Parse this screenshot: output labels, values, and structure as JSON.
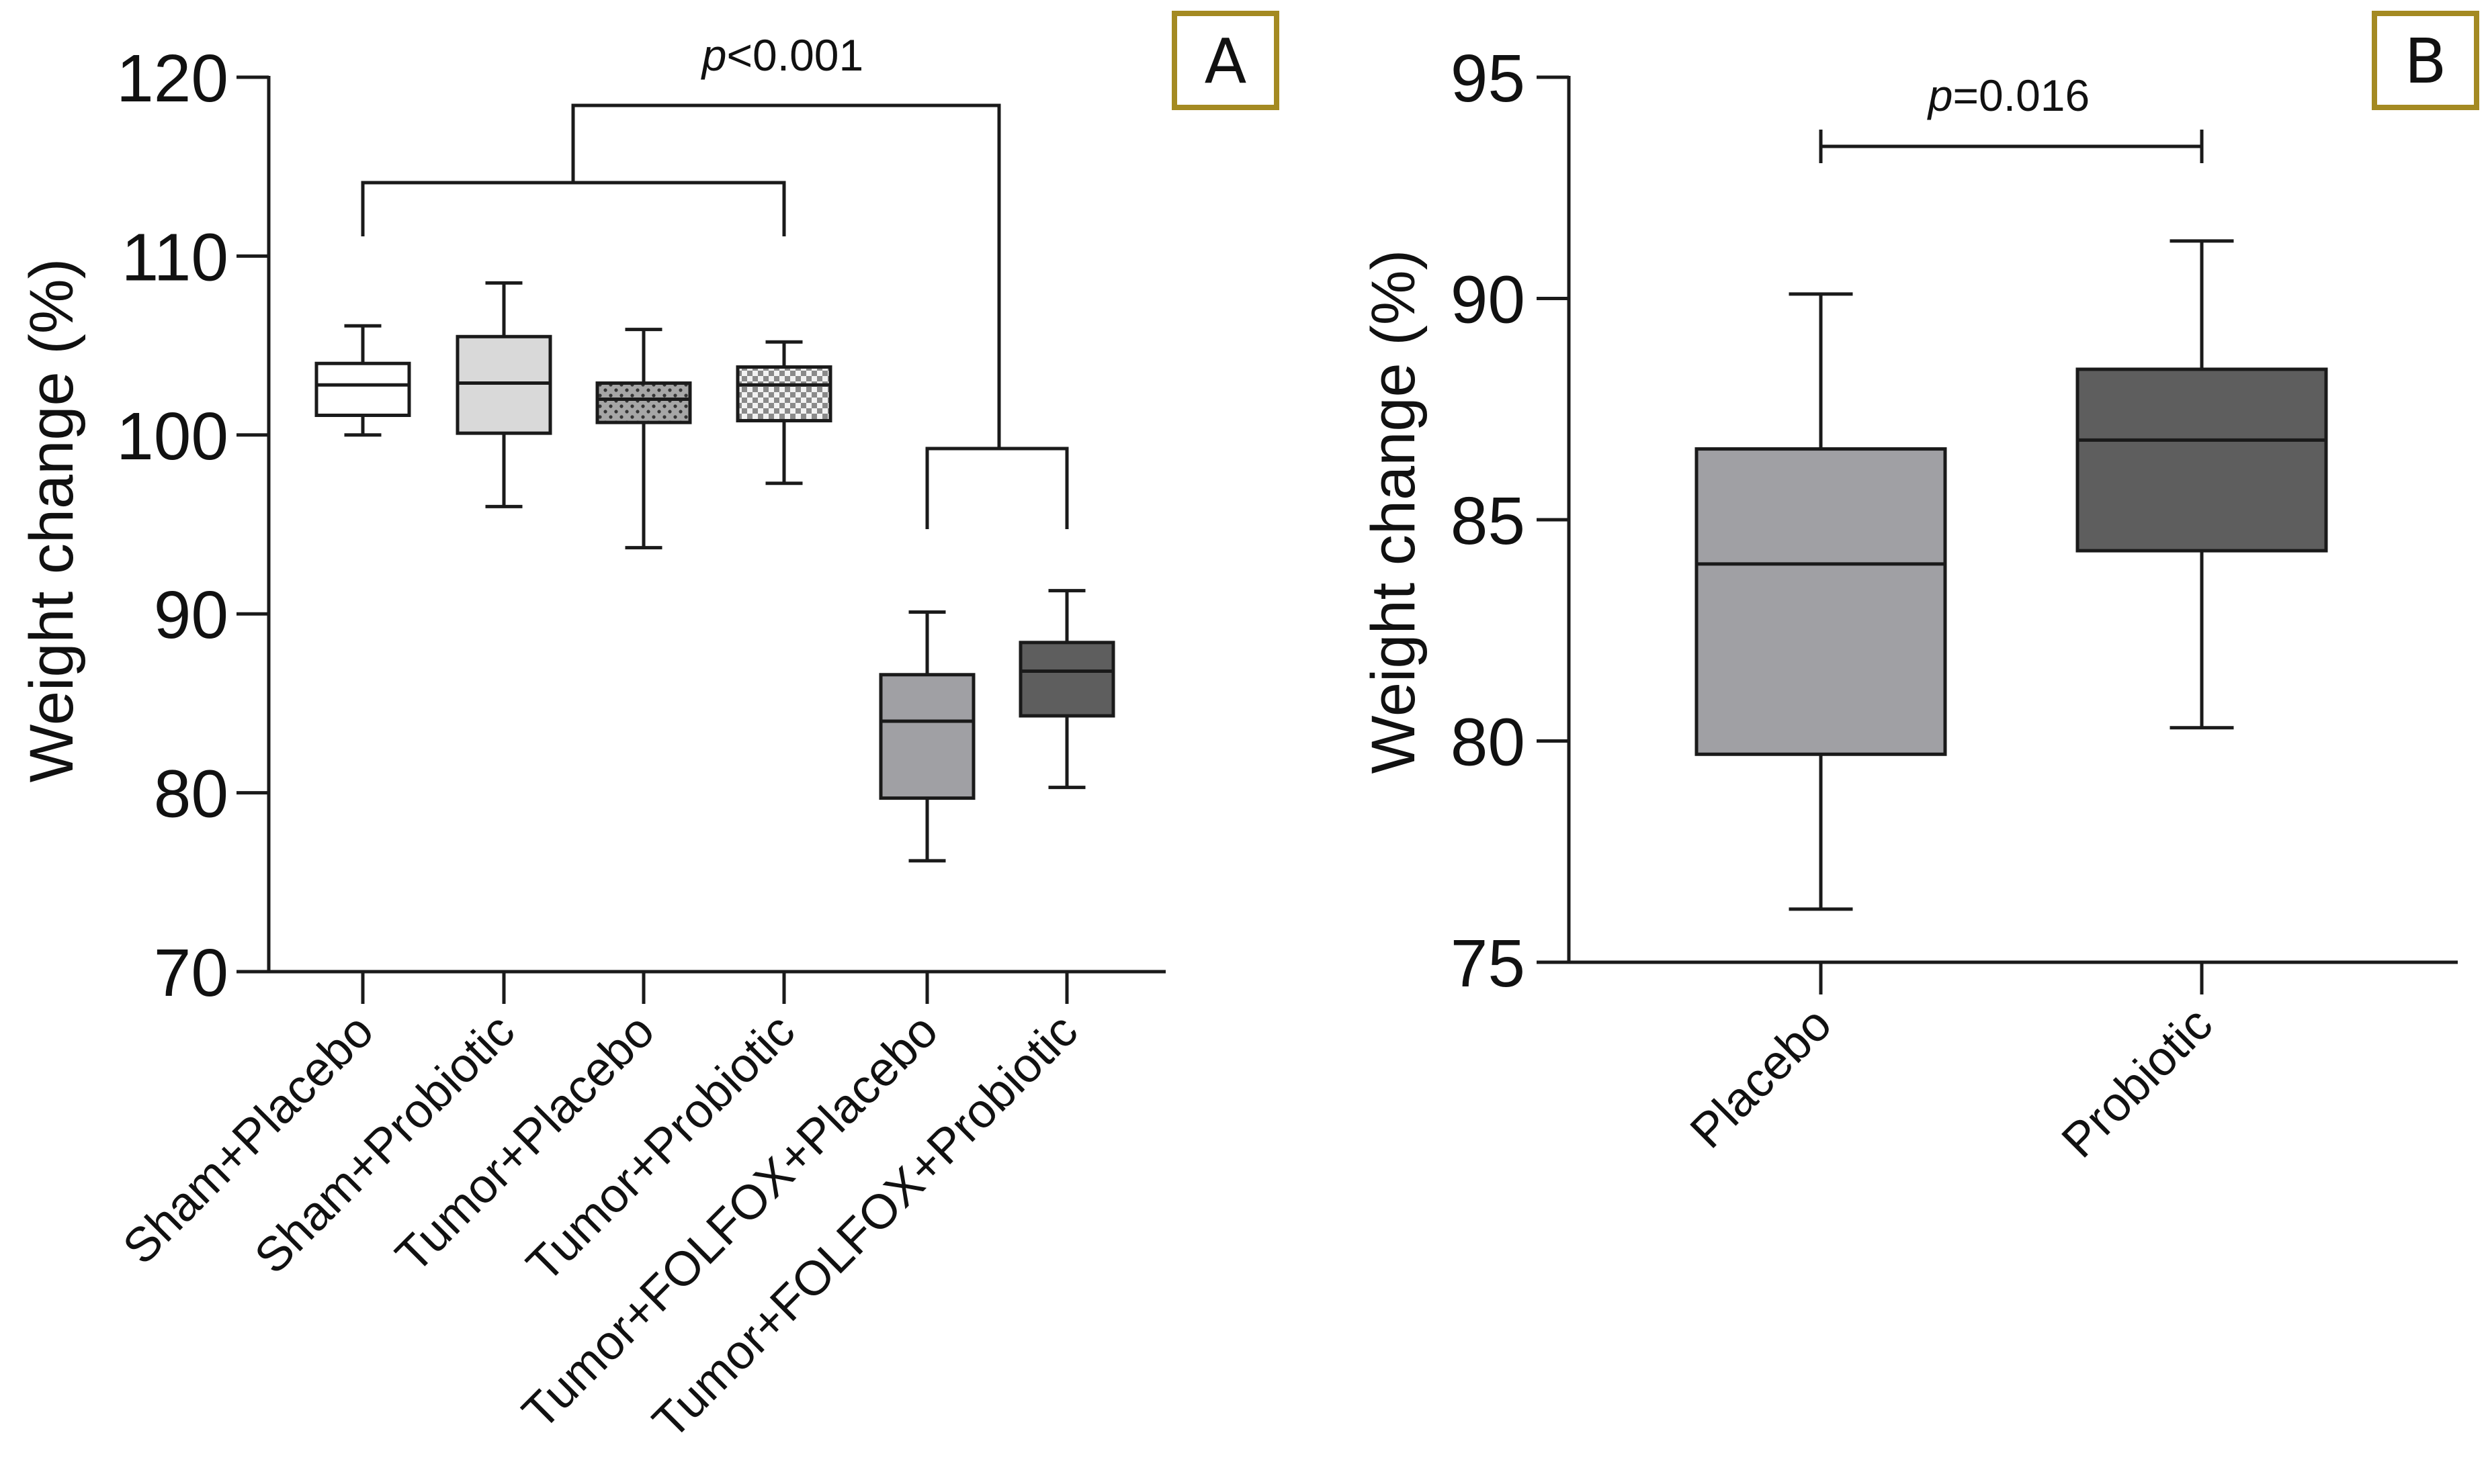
{
  "chart_data": [
    {
      "panel": "A",
      "type": "box",
      "ylabel": "Weight change (%)",
      "ylim": [
        70,
        120
      ],
      "yticks": [
        70,
        80,
        90,
        100,
        110,
        120
      ],
      "grid": false,
      "categories": [
        "Sham+Placebo",
        "Sham+Probiotic",
        "Tumor+Placebo",
        "Tumor+Probiotic",
        "Tumor+FOLFOX+Placebo",
        "Tumor+FOLFOX+Probiotic"
      ],
      "boxes": [
        {
          "min": 100.0,
          "q1": 101.1,
          "median": 102.8,
          "q3": 104.0,
          "max": 106.1,
          "fill": "#ffffff",
          "pattern": "none"
        },
        {
          "min": 96.0,
          "q1": 100.1,
          "median": 102.9,
          "q3": 105.5,
          "max": 108.5,
          "fill": "#d9d9d9",
          "pattern": "none"
        },
        {
          "min": 93.7,
          "q1": 100.7,
          "median": 102.0,
          "q3": 102.9,
          "max": 105.9,
          "fill": "#a6a6a6",
          "pattern": "dots"
        },
        {
          "min": 97.3,
          "q1": 100.8,
          "median": 102.8,
          "q3": 103.8,
          "max": 105.2,
          "fill": "#e0e0e0",
          "pattern": "checker"
        },
        {
          "min": 76.2,
          "q1": 79.7,
          "median": 84.0,
          "q3": 86.6,
          "max": 90.1,
          "fill": "#a0a0a4",
          "pattern": "none"
        },
        {
          "min": 80.3,
          "q1": 84.3,
          "median": 86.8,
          "q3": 88.4,
          "max": 91.3,
          "fill": "#5e5e5e",
          "pattern": "none"
        }
      ],
      "annotations": [
        {
          "text_italic": "p",
          "text": "<0.001"
        }
      ]
    },
    {
      "panel": "B",
      "type": "box",
      "ylabel": "Weight change (%)",
      "ylim": [
        75,
        95
      ],
      "yticks": [
        75,
        80,
        85,
        90,
        95
      ],
      "grid": false,
      "categories": [
        "Placebo",
        "Probiotic"
      ],
      "boxes": [
        {
          "min": 76.2,
          "q1": 79.7,
          "median": 84.0,
          "q3": 86.6,
          "max": 90.1,
          "fill": "#a0a0a4",
          "pattern": "none"
        },
        {
          "min": 80.3,
          "q1": 84.3,
          "median": 86.8,
          "q3": 88.4,
          "max": 91.3,
          "fill": "#5e5e5e",
          "pattern": "none"
        }
      ],
      "annotations": [
        {
          "text_italic": "p",
          "text": "=0.016"
        }
      ]
    }
  ],
  "colors": {
    "axis": "#1a1a1a",
    "panel_border": "#a48a22"
  }
}
